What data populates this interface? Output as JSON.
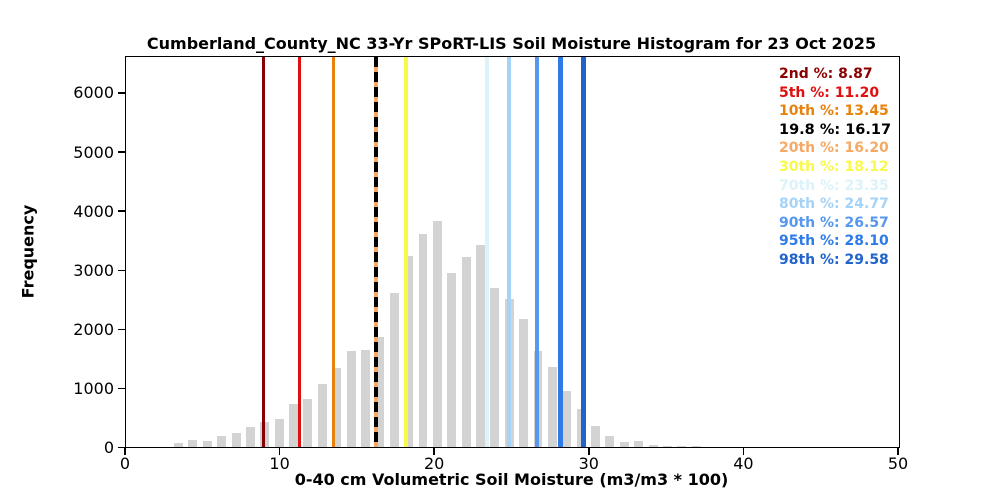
{
  "title": "Cumberland_County_NC 33-Yr SPoRT-LIS Soil Moisture Histogram for 23 Oct 2025",
  "axes": {
    "xlabel": "0-40 cm Volumetric Soil Moisture (m3/m3 * 100)",
    "ylabel": "Frequency",
    "x_ticks": [
      0,
      10,
      20,
      30,
      40,
      50
    ],
    "y_ticks": [
      0,
      1000,
      2000,
      3000,
      4000,
      5000,
      6000
    ],
    "xlim": [
      0,
      50
    ],
    "ylim": [
      0,
      6600
    ]
  },
  "chart_data": {
    "type": "bar",
    "subtype": "histogram",
    "title": "Cumberland_County_NC 33-Yr SPoRT-LIS Soil Moisture Histogram for 23 Oct 2025",
    "xlabel": "0-40 cm Volumetric Soil Moisture (m3/m3 * 100)",
    "ylabel": "Frequency",
    "xlim": [
      0,
      50
    ],
    "ylim": [
      0,
      6600
    ],
    "grid": false,
    "bar_color": "#d3d3d3",
    "bin_width": 0.93,
    "bar_draw_width": 0.58,
    "bin_centers": [
      3.4,
      4.33,
      5.26,
      6.19,
      7.12,
      8.05,
      8.98,
      9.91,
      10.84,
      11.77,
      12.7,
      13.63,
      14.56,
      15.49,
      16.42,
      17.35,
      18.28,
      19.21,
      20.14,
      21.07,
      22.0,
      22.93,
      23.86,
      24.79,
      25.72,
      26.65,
      27.58,
      28.51,
      29.44,
      30.37,
      31.3,
      32.23,
      33.16,
      34.09,
      35.02,
      35.95,
      36.88
    ],
    "frequencies": [
      60,
      125,
      100,
      180,
      240,
      340,
      430,
      470,
      720,
      810,
      1060,
      1330,
      1630,
      1650,
      1860,
      2610,
      3240,
      3600,
      3820,
      2950,
      3210,
      3420,
      2690,
      2510,
      2160,
      1620,
      1350,
      940,
      640,
      355,
      190,
      90,
      100,
      35,
      25,
      25,
      10
    ],
    "percentile_lines": [
      {
        "label": "2nd %",
        "value": 8.87,
        "display": "8.87",
        "color": "#8b0000",
        "style": "solid",
        "lw": 3
      },
      {
        "label": "5th %",
        "value": 11.2,
        "display": "11.20",
        "color": "#e01010",
        "style": "solid",
        "lw": 3
      },
      {
        "label": "10th %",
        "value": 13.45,
        "display": "13.45",
        "color": "#e8820e",
        "style": "solid",
        "lw": 3
      },
      {
        "label": "19.8 %",
        "value": 16.17,
        "display": "16.17",
        "color": "#000000",
        "style": "dashed",
        "lw": 3.5,
        "emphasis": true
      },
      {
        "label": "20th %",
        "value": 16.2,
        "display": "16.20",
        "color": "#f5a964",
        "style": "solid",
        "lw": 4
      },
      {
        "label": "30th %",
        "value": 18.12,
        "display": "18.12",
        "color": "#f9f94a",
        "style": "solid",
        "lw": 4.5
      },
      {
        "label": "70th %",
        "value": 23.35,
        "display": "23.35",
        "color": "#dcf3fa",
        "style": "solid",
        "lw": 4.5
      },
      {
        "label": "80th %",
        "value": 24.77,
        "display": "24.77",
        "color": "#a5d3f7",
        "style": "solid",
        "lw": 4.5
      },
      {
        "label": "90th %",
        "value": 26.57,
        "display": "26.57",
        "color": "#5697ef",
        "style": "solid",
        "lw": 4.5
      },
      {
        "label": "95th %",
        "value": 28.1,
        "display": "28.10",
        "color": "#2e7be8",
        "style": "solid",
        "lw": 4.5
      },
      {
        "label": "98th %",
        "value": 29.58,
        "display": "29.58",
        "color": "#2163cd",
        "style": "solid",
        "lw": 4.5
      }
    ]
  },
  "legend": {
    "position": "top-right",
    "separator": ": "
  }
}
